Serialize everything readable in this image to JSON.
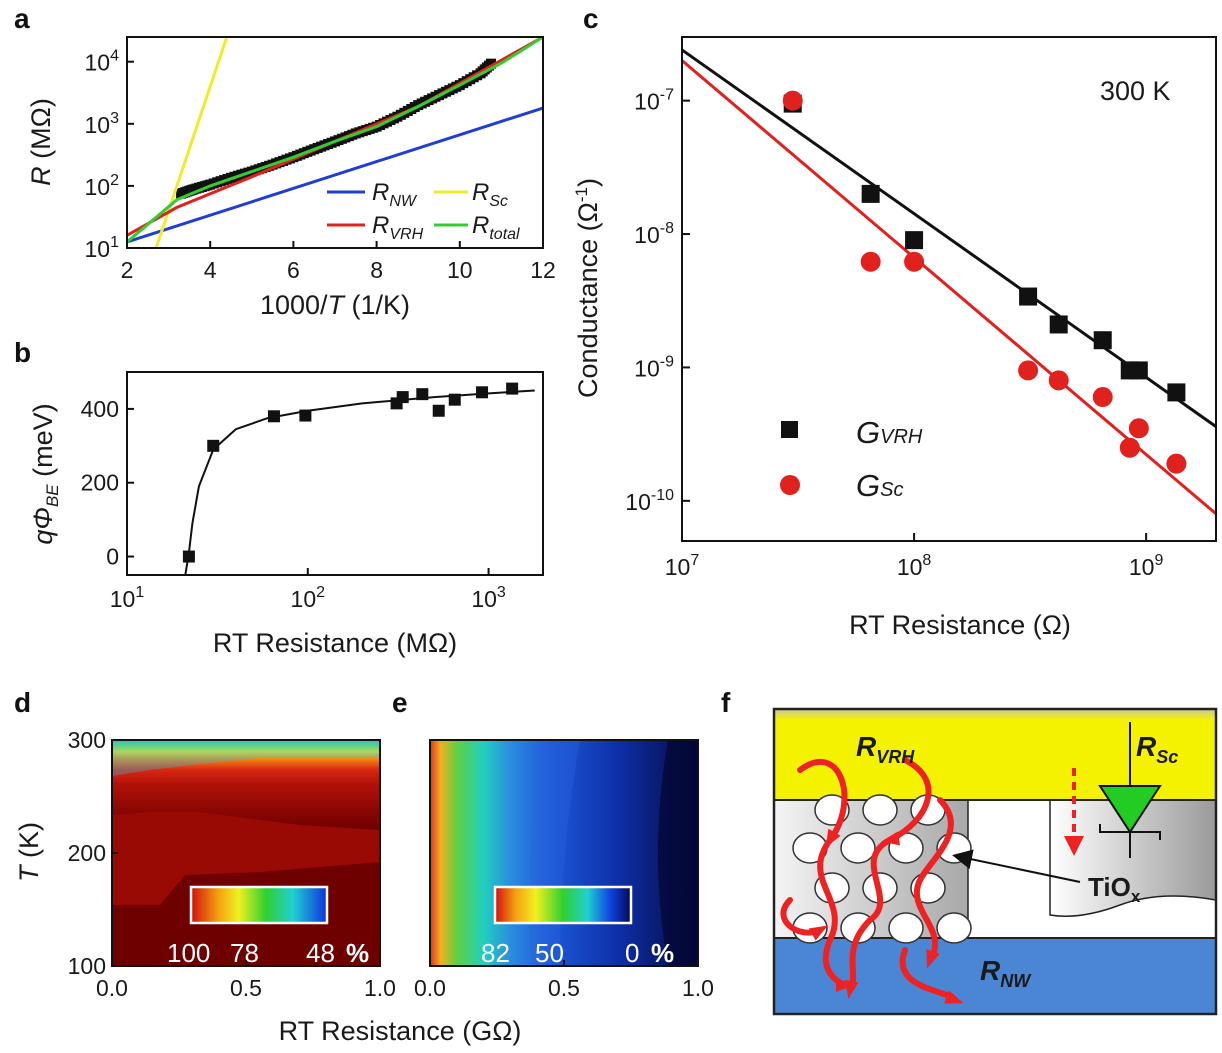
{
  "chart_data": [
    {
      "panel": "a",
      "type": "line",
      "xlabel_pre": "1000/",
      "xlabel_italic": "T",
      "xlabel_post": " (1/K)",
      "ylabel_italic": "R",
      "ylabel_post": " (MΩ)",
      "xlim": [
        2,
        12
      ],
      "ylim": [
        10,
        25000
      ],
      "yscale": "log",
      "xticks": [
        "2",
        "4",
        "6",
        "8",
        "10",
        "12"
      ],
      "yticks": [
        "10^1",
        "10^2",
        "10^3",
        "10^4"
      ],
      "legend_position": "bottom-right",
      "legend": [
        {
          "main": "R",
          "sub": "NW"
        },
        {
          "main": "R",
          "sub": "Sc"
        },
        {
          "main": "R",
          "sub": "VRH"
        },
        {
          "main": "R",
          "sub": "total"
        }
      ],
      "series": [
        {
          "name": "R_NW",
          "color": "#1f3fd0",
          "x": [
            2,
            12
          ],
          "y": [
            12.5,
            1800
          ]
        },
        {
          "name": "R_Sc",
          "color": "#f2ea2a",
          "x": [
            2.7,
            4.4
          ],
          "y": [
            10,
            25000
          ]
        },
        {
          "name": "R_VRH",
          "color": "#e0211d",
          "x": [
            2,
            3.2,
            5,
            7,
            9,
            12
          ],
          "y": [
            16,
            45,
            140,
            520,
            1900,
            25000
          ]
        },
        {
          "name": "R_total",
          "color": "#33cc33",
          "x": [
            2,
            3.2,
            4,
            5,
            6,
            7,
            8,
            9,
            10,
            11,
            12
          ],
          "y": [
            12.5,
            60,
            100,
            170,
            290,
            520,
            900,
            1900,
            4200,
            9500,
            25000
          ]
        },
        {
          "name": "data",
          "color": "#111111",
          "x": [
            3.3,
            3.6,
            4,
            4.5,
            5,
            5.5,
            6,
            6.5,
            7,
            7.5,
            8,
            8.5,
            9,
            9.5,
            10,
            10.5,
            10.8
          ],
          "y": [
            75,
            88,
            105,
            135,
            170,
            220,
            290,
            390,
            520,
            700,
            900,
            1300,
            2000,
            2900,
            4200,
            6500,
            10000
          ]
        }
      ]
    },
    {
      "panel": "b",
      "type": "scatter",
      "xlabel": "RT Resistance (MΩ)",
      "ylabel_pre": "qΦ",
      "ylabel_sub": "BE",
      "ylabel_post": " (meV)",
      "xlim": [
        10,
        2000
      ],
      "ylim": [
        -50,
        500
      ],
      "xscale": "log",
      "xticks": [
        "10^1",
        "10^2",
        "10^3"
      ],
      "yticks": [
        "0",
        "200",
        "400"
      ],
      "points": {
        "x": [
          22,
          30,
          65,
          97,
          310,
          335,
          430,
          530,
          650,
          920,
          1350
        ],
        "y": [
          0,
          300,
          380,
          382,
          415,
          432,
          440,
          395,
          425,
          445,
          455
        ]
      },
      "fit": {
        "x": [
          21,
          22,
          23,
          25,
          30,
          40,
          60,
          100,
          200,
          500,
          1000,
          1800
        ],
        "y": [
          -50,
          10,
          90,
          190,
          290,
          345,
          375,
          395,
          415,
          432,
          442,
          450
        ]
      }
    },
    {
      "panel": "c",
      "type": "scatter",
      "annotation": "300 K",
      "xlabel": "RT Resistance (Ω)",
      "ylabel_pre": "Conductance (Ω",
      "ylabel_sup": "-1",
      "ylabel_post": ")",
      "xlim": [
        10000000,
        2000000000
      ],
      "ylim": [
        5e-11,
        3e-07
      ],
      "xscale": "log",
      "yscale": "log",
      "xticks": [
        "10^7",
        "10^8",
        "10^9"
      ],
      "yticks": [
        "10^-10",
        "10^-9",
        "10^-8",
        "10^-7"
      ],
      "legend_position": "bottom-left",
      "series": [
        {
          "name": "G_VRH",
          "legend_main": "G",
          "legend_sub": "VRH",
          "marker": "square",
          "color": "#111111",
          "x": [
            30000000,
            65000000,
            100000000,
            310000000,
            420000000,
            650000000,
            850000000,
            930000000,
            1350000000
          ],
          "y": [
            9.5e-08,
            2e-08,
            9e-09,
            3.4e-09,
            2.1e-09,
            1.6e-09,
            9.5e-10,
            9.5e-10,
            6.5e-10
          ],
          "fit_x": [
            10000000,
            2000000000
          ],
          "fit_y": [
            2.4e-07,
            3.6e-10
          ]
        },
        {
          "name": "G_Sc",
          "legend_main": "G",
          "legend_sub": "Sc",
          "marker": "circle",
          "color": "#e0211d",
          "x": [
            30000000,
            65000000,
            100000000,
            310000000,
            420000000,
            650000000,
            850000000,
            930000000,
            1350000000
          ],
          "y": [
            1e-07,
            6.2e-09,
            6.2e-09,
            9.5e-10,
            8e-10,
            6e-10,
            2.5e-10,
            3.5e-10,
            1.9e-10
          ],
          "fit_x": [
            10000000,
            2000000000
          ],
          "fit_y": [
            2e-07,
            8e-11
          ]
        }
      ]
    },
    {
      "panel": "d",
      "type": "heatmap",
      "ylabel_italic": "T",
      "ylabel_post": " (K)",
      "xlim": [
        0,
        1
      ],
      "ylim": [
        100,
        300
      ],
      "xticks": [
        "0.0",
        "0.5",
        "1.0"
      ],
      "yticks": [
        "100",
        "200",
        "300"
      ],
      "colorbar_labels": [
        "100",
        "78",
        "48"
      ],
      "colorbar_unit": "%"
    },
    {
      "panel": "e",
      "type": "heatmap",
      "xlim": [
        0,
        1
      ],
      "ylim": [
        100,
        300
      ],
      "xticks": [
        "0.0",
        "0.5",
        "1.0"
      ],
      "colorbar_labels": [
        "82",
        "50",
        "0"
      ],
      "colorbar_unit": "%"
    }
  ],
  "shared_xlabel_de": "RT Resistance (GΩ)",
  "diagram_f": {
    "panel": "f",
    "labels": [
      {
        "main": "R",
        "sub": "VRH"
      },
      {
        "main": "R",
        "sub": "Sc"
      },
      {
        "main": "R",
        "sub": "NW"
      }
    ],
    "tiox_main": "TiO",
    "tiox_sub": "x",
    "colors": {
      "contact": "#f5f200",
      "nanowire": "#4a86d4",
      "diode": "#22cc22",
      "arrow": "#ee2222"
    }
  }
}
